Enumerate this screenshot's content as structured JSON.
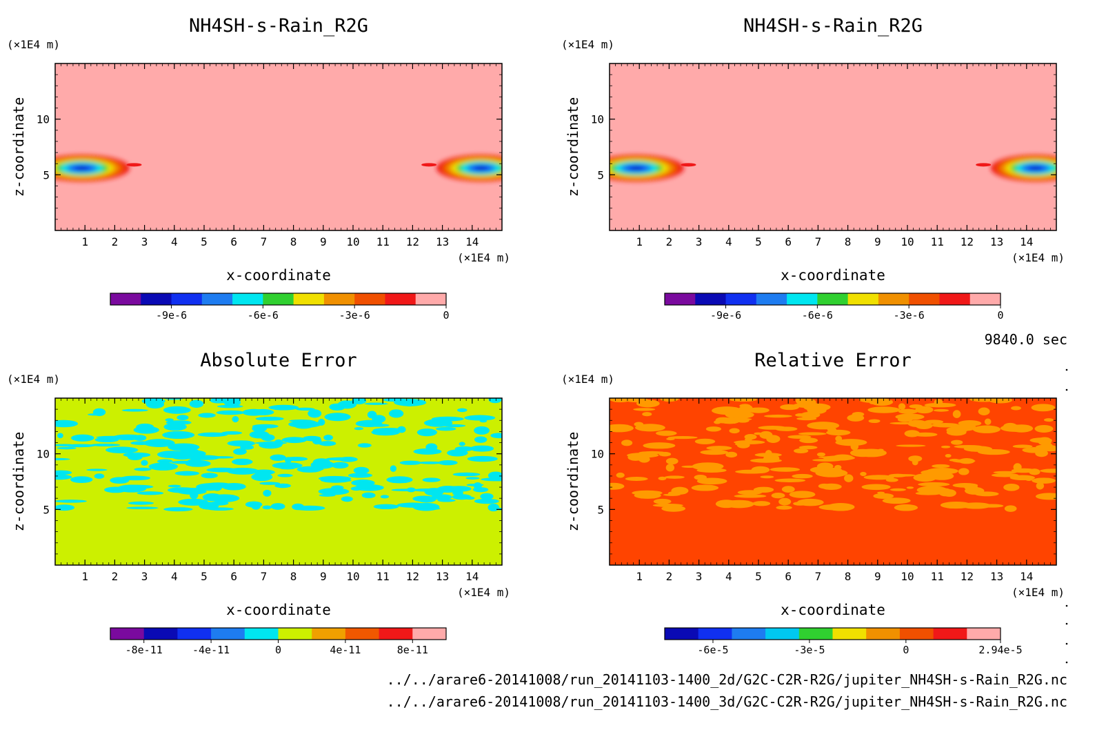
{
  "timestamp": "9840.0 sec",
  "file_paths": [
    "../../arare6-20141008/run_20141103-1400_2d/G2C-C2R-R2G/jupiter_NH4SH-s-Rain_R2G.nc",
    "../../arare6-20141008/run_20141103-1400_3d/G2C-C2R-R2G/jupiter_NH4SH-s-Rain_R2G.nc"
  ],
  "chart_data": [
    {
      "type": "heatmap",
      "title": "NH4SH-s-Rain_R2G",
      "xlabel": "x-coordinate",
      "ylabel": "z-coordinate",
      "x_unit": "(×1E4 m)",
      "y_unit": "(×1E4 m)",
      "xlim": [
        0,
        15
      ],
      "ylim": [
        0,
        15
      ],
      "x_ticks": [
        1,
        2,
        3,
        4,
        5,
        6,
        7,
        8,
        9,
        10,
        11,
        12,
        13,
        14
      ],
      "y_ticks": [
        5,
        10
      ],
      "field": "rain",
      "colorbar": {
        "colors": [
          "#7a0a9e",
          "#0a0ab4",
          "#1030f0",
          "#1e7cf0",
          "#00e6f0",
          "#30d030",
          "#f0e000",
          "#f09000",
          "#f05000",
          "#f01818",
          "#ffaaaa"
        ],
        "tick_labels": [
          "-9e-6",
          "-6e-6",
          "-3e-6",
          "0"
        ],
        "tick_values": [
          -9e-06,
          -6e-06,
          -3e-06,
          0
        ],
        "range": [
          -1.1e-05,
          0
        ]
      }
    },
    {
      "type": "heatmap",
      "title": "NH4SH-s-Rain_R2G",
      "xlabel": "x-coordinate",
      "ylabel": "z-coordinate",
      "x_unit": "(×1E4 m)",
      "y_unit": "(×1E4 m)",
      "xlim": [
        0,
        15
      ],
      "ylim": [
        0,
        15
      ],
      "x_ticks": [
        1,
        2,
        3,
        4,
        5,
        6,
        7,
        8,
        9,
        10,
        11,
        12,
        13,
        14
      ],
      "y_ticks": [
        5,
        10
      ],
      "field": "rain",
      "colorbar": {
        "colors": [
          "#7a0a9e",
          "#0a0ab4",
          "#1030f0",
          "#1e7cf0",
          "#00e6f0",
          "#30d030",
          "#f0e000",
          "#f09000",
          "#f05000",
          "#f01818",
          "#ffaaaa"
        ],
        "tick_labels": [
          "-9e-6",
          "-6e-6",
          "-3e-6",
          "0"
        ],
        "tick_values": [
          -9e-06,
          -6e-06,
          -3e-06,
          0
        ],
        "range": [
          -1.1e-05,
          0
        ]
      }
    },
    {
      "type": "heatmap",
      "title": "Absolute Error",
      "xlabel": "x-coordinate",
      "ylabel": "z-coordinate",
      "x_unit": "(×1E4 m)",
      "y_unit": "(×1E4 m)",
      "xlim": [
        0,
        15
      ],
      "ylim": [
        0,
        15
      ],
      "x_ticks": [
        1,
        2,
        3,
        4,
        5,
        6,
        7,
        8,
        9,
        10,
        11,
        12,
        13,
        14
      ],
      "y_ticks": [
        5,
        10
      ],
      "field": "abs",
      "colorbar": {
        "colors": [
          "#7a0a9e",
          "#0a0ab4",
          "#1030f0",
          "#1e7cf0",
          "#00e6f0",
          "#ccf000",
          "#f0a000",
          "#f05800",
          "#f01818",
          "#ffaaaa"
        ],
        "tick_labels": [
          "-8e-11",
          "-4e-11",
          "0",
          "4e-11",
          "8e-11"
        ],
        "tick_values": [
          -8e-11,
          -4e-11,
          0,
          4e-11,
          8e-11
        ],
        "range": [
          -1e-10,
          1e-10
        ]
      }
    },
    {
      "type": "heatmap",
      "title": "Relative Error",
      "xlabel": "x-coordinate",
      "ylabel": "z-coordinate",
      "x_unit": "(×1E4 m)",
      "y_unit": "(×1E4 m)",
      "xlim": [
        0,
        15
      ],
      "ylim": [
        0,
        15
      ],
      "x_ticks": [
        1,
        2,
        3,
        4,
        5,
        6,
        7,
        8,
        9,
        10,
        11,
        12,
        13,
        14
      ],
      "y_ticks": [
        5,
        10
      ],
      "field": "rel",
      "colorbar": {
        "colors": [
          "#0a0ab4",
          "#1030f0",
          "#1e7cf0",
          "#00c8f0",
          "#30d030",
          "#f0e000",
          "#f09000",
          "#f05000",
          "#f01818",
          "#ffaaaa"
        ],
        "tick_labels": [
          "-6e-5",
          "-3e-5",
          "0",
          "2.94e-5"
        ],
        "tick_values": [
          -6e-05,
          -3e-05,
          0,
          2.94e-05
        ],
        "range": [
          -7.5e-05,
          2.94e-05
        ]
      }
    }
  ]
}
